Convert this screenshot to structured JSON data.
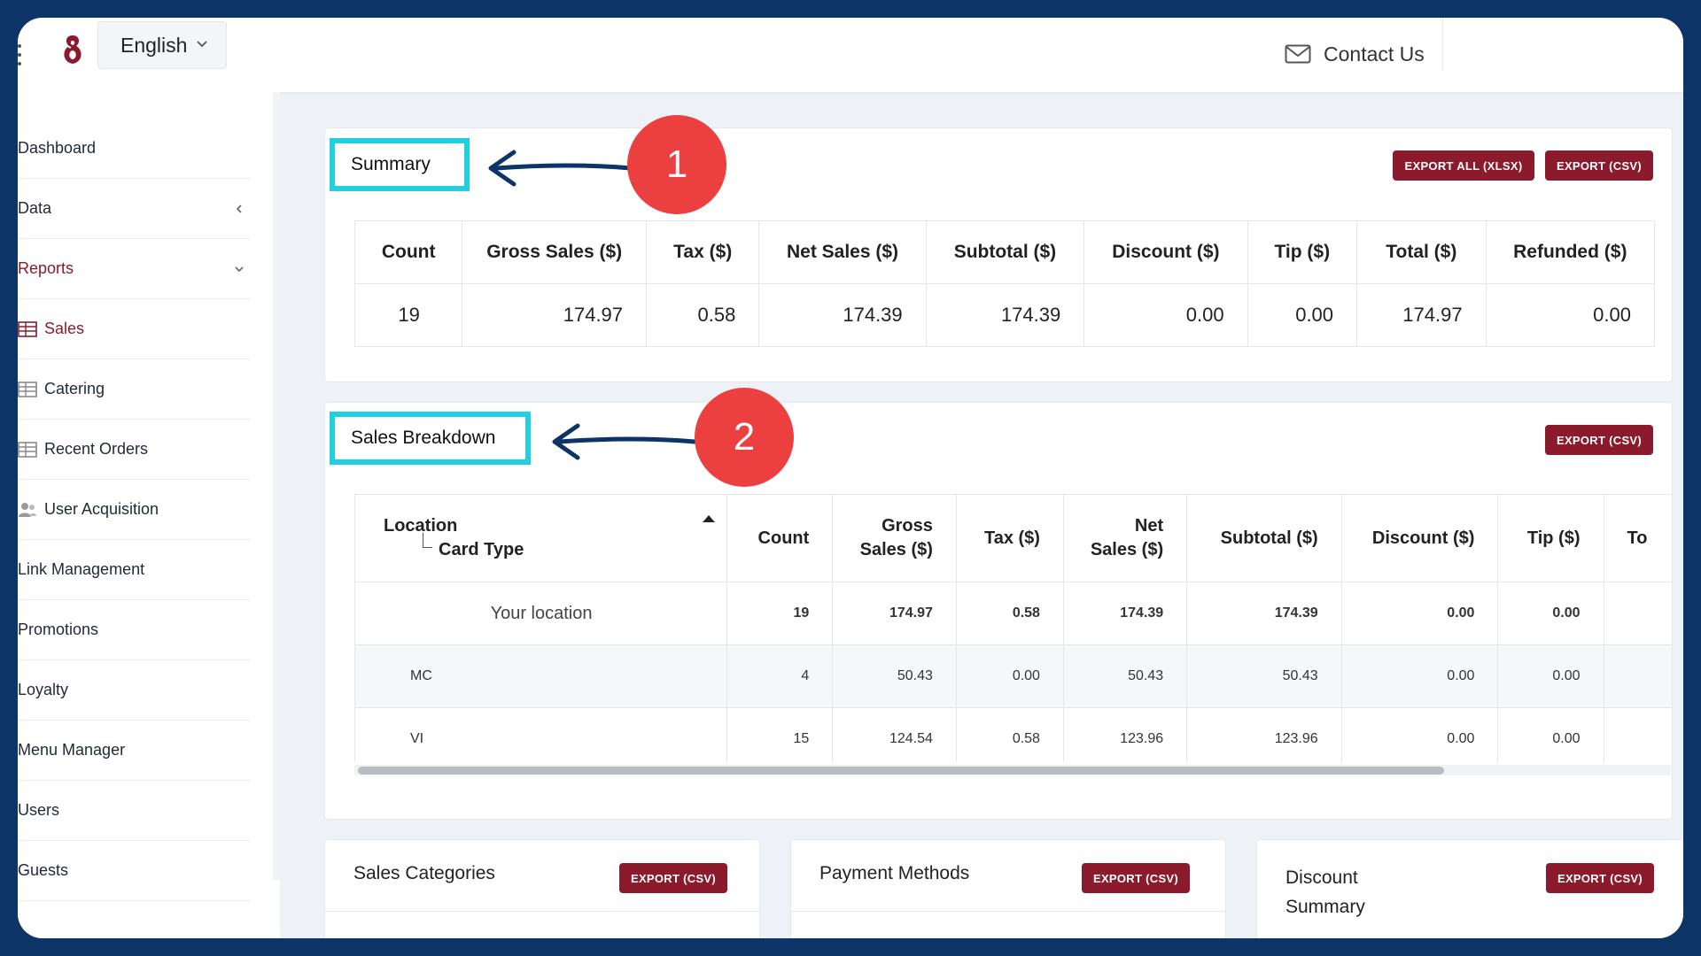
{
  "header": {
    "language": "English",
    "contact_label": "Contact Us"
  },
  "sidebar": {
    "items": [
      {
        "label": "Dashboard"
      },
      {
        "label": "Data"
      },
      {
        "label": "Reports"
      },
      {
        "label": "Sales"
      },
      {
        "label": "Catering"
      },
      {
        "label": "Recent Orders"
      },
      {
        "label": "User Acquisition"
      },
      {
        "label": "Link Management"
      },
      {
        "label": "Promotions"
      },
      {
        "label": "Loyalty"
      },
      {
        "label": "Menu Manager"
      },
      {
        "label": "Users"
      },
      {
        "label": "Guests"
      }
    ]
  },
  "summary": {
    "title": "Summary",
    "export_all_label": "EXPORT ALL (XLSX)",
    "export_csv_label": "EXPORT (CSV)",
    "headers": [
      "Count",
      "Gross Sales ($)",
      "Tax ($)",
      "Net Sales ($)",
      "Subtotal ($)",
      "Discount ($)",
      "Tip ($)",
      "Total ($)",
      "Refunded ($)"
    ],
    "values": [
      "19",
      "174.97",
      "0.58",
      "174.39",
      "174.39",
      "0.00",
      "0.00",
      "174.97",
      "0.00"
    ]
  },
  "breakdown": {
    "title": "Sales Breakdown",
    "export_csv_label": "EXPORT (CSV)",
    "headers": {
      "location": "Location",
      "card_type": "Card Type",
      "count": "Count",
      "gross_1": "Gross",
      "gross_2": "Sales ($)",
      "tax": "Tax ($)",
      "net_1": "Net",
      "net_2": "Sales ($)",
      "subtotal": "Subtotal ($)",
      "discount": "Discount ($)",
      "tip": "Tip ($)",
      "total_cut": "To"
    },
    "group": {
      "label": "Your location",
      "values": [
        "19",
        "174.97",
        "0.58",
        "174.39",
        "174.39",
        "0.00",
        "0.00"
      ]
    },
    "rows": [
      {
        "label": "MC",
        "values": [
          "4",
          "50.43",
          "0.00",
          "50.43",
          "50.43",
          "0.00",
          "0.00"
        ]
      },
      {
        "label": "VI",
        "values": [
          "15",
          "124.54",
          "0.58",
          "123.96",
          "123.96",
          "0.00",
          "0.00"
        ]
      }
    ]
  },
  "bottom_cards": [
    {
      "title": "Sales Categories",
      "export_label": "EXPORT (CSV)"
    },
    {
      "title": "Payment Methods",
      "export_label": "EXPORT (CSV)"
    },
    {
      "title_1": "Discount",
      "title_2": "Summary",
      "export_label": "EXPORT (CSV)"
    }
  ],
  "annotations": [
    "1",
    "2"
  ],
  "colors": {
    "frame": "#0d3466",
    "accent": "#8b1b2c",
    "highlight": "#20d0e0",
    "annotation": "#ec3f3f"
  }
}
